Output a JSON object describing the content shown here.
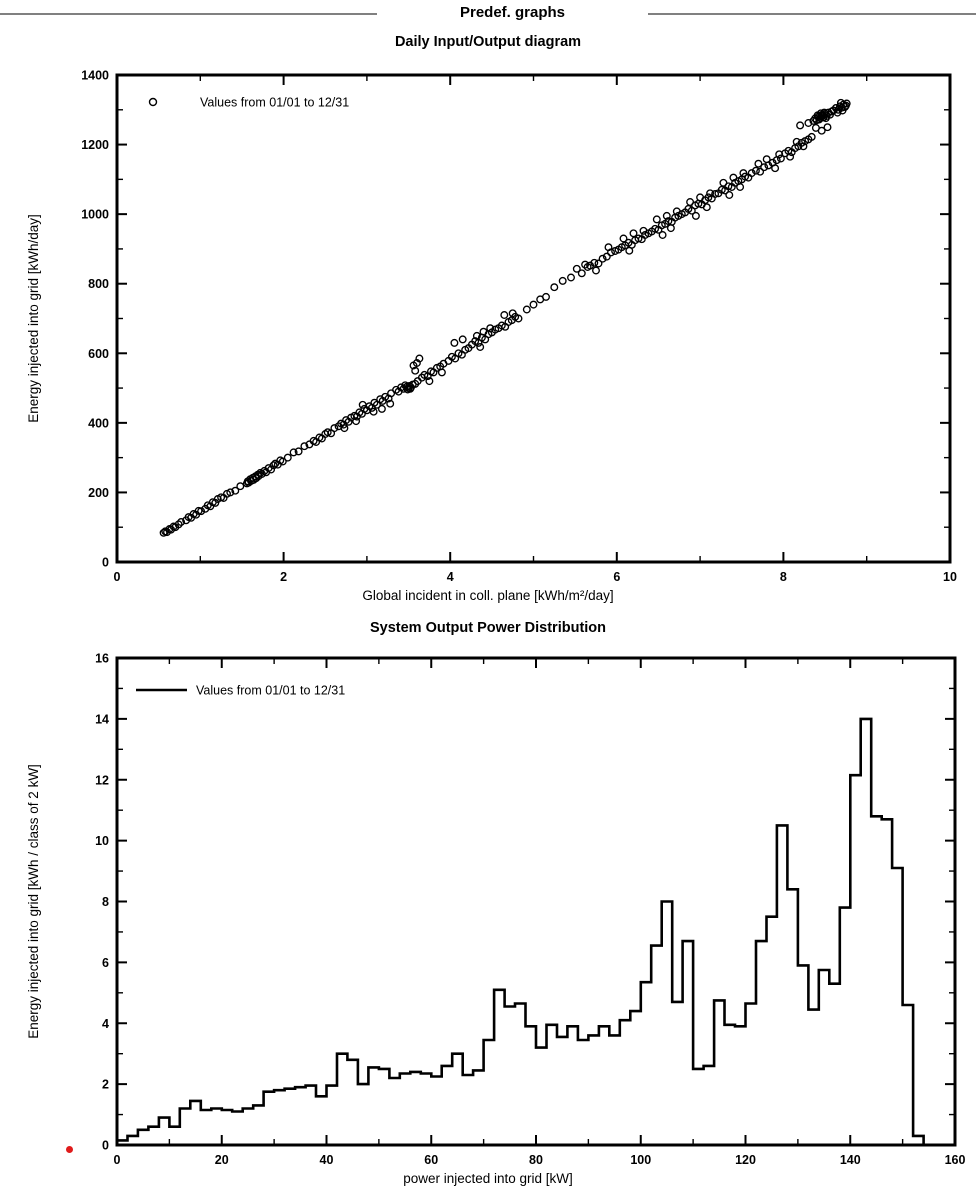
{
  "header": {
    "title": "Predef. graphs"
  },
  "colors": {
    "header_rule": "#808080",
    "red_dot": "#e01b1b",
    "plot": "#000000"
  },
  "chart_data": [
    {
      "type": "scatter",
      "title": "Daily Input/Output diagram",
      "legend": "Values from 01/01 to 12/31",
      "xlabel": "Global incident in coll. plane [kWh/m²/day]",
      "ylabel": "Energy injected into grid [kWh/day]",
      "xlim": [
        0,
        10
      ],
      "ylim": [
        0,
        1400
      ],
      "x_major": 2,
      "x_minor": 1,
      "y_major": 200,
      "y_minor": 100,
      "grid": false,
      "legend_position": "top-left",
      "points": [
        [
          0.56,
          84
        ],
        [
          0.58,
          88
        ],
        [
          0.6,
          86
        ],
        [
          0.63,
          95
        ],
        [
          0.65,
          93
        ],
        [
          0.68,
          102
        ],
        [
          0.7,
          100
        ],
        [
          0.74,
          108
        ],
        [
          0.77,
          115
        ],
        [
          0.83,
          120
        ],
        [
          0.86,
          129
        ],
        [
          0.89,
          127
        ],
        [
          0.92,
          138
        ],
        [
          0.95,
          136
        ],
        [
          0.98,
          147
        ],
        [
          1.01,
          146
        ],
        [
          1.06,
          153
        ],
        [
          1.09,
          163
        ],
        [
          1.12,
          160
        ],
        [
          1.15,
          172
        ],
        [
          1.18,
          170
        ],
        [
          1.21,
          181
        ],
        [
          1.25,
          186
        ],
        [
          1.28,
          184
        ],
        [
          1.32,
          196
        ],
        [
          1.36,
          200
        ],
        [
          1.42,
          205
        ],
        [
          1.48,
          218
        ],
        [
          1.56,
          226
        ],
        [
          1.57,
          232
        ],
        [
          1.58,
          228
        ],
        [
          1.6,
          238
        ],
        [
          1.61,
          233
        ],
        [
          1.63,
          242
        ],
        [
          1.64,
          236
        ],
        [
          1.66,
          246
        ],
        [
          1.67,
          241
        ],
        [
          1.69,
          251
        ],
        [
          1.7,
          247
        ],
        [
          1.72,
          256
        ],
        [
          1.74,
          253
        ],
        [
          1.77,
          262
        ],
        [
          1.79,
          258
        ],
        [
          1.82,
          270
        ],
        [
          1.85,
          266
        ],
        [
          1.88,
          278
        ],
        [
          1.9,
          283
        ],
        [
          1.93,
          280
        ],
        [
          1.96,
          292
        ],
        [
          1.99,
          289
        ],
        [
          2.05,
          300
        ],
        [
          2.12,
          315
        ],
        [
          2.18,
          318
        ],
        [
          2.25,
          333
        ],
        [
          2.31,
          338
        ],
        [
          2.36,
          348
        ],
        [
          2.39,
          345
        ],
        [
          2.43,
          358
        ],
        [
          2.46,
          355
        ],
        [
          2.5,
          368
        ],
        [
          2.53,
          373
        ],
        [
          2.57,
          370
        ],
        [
          2.61,
          385
        ],
        [
          2.66,
          390
        ],
        [
          2.69,
          398
        ],
        [
          2.72,
          395
        ],
        [
          2.75,
          408
        ],
        [
          2.78,
          403
        ],
        [
          2.81,
          415
        ],
        [
          2.85,
          420
        ],
        [
          2.88,
          418
        ],
        [
          2.91,
          430
        ],
        [
          2.94,
          426
        ],
        [
          2.97,
          440
        ],
        [
          3.0,
          436
        ],
        [
          2.73,
          385
        ],
        [
          2.87,
          405
        ],
        [
          2.95,
          452
        ],
        [
          3.03,
          448
        ],
        [
          3.06,
          443
        ],
        [
          3.09,
          458
        ],
        [
          3.12,
          452
        ],
        [
          3.16,
          468
        ],
        [
          3.19,
          463
        ],
        [
          3.22,
          475
        ],
        [
          3.26,
          470
        ],
        [
          3.29,
          485
        ],
        [
          3.08,
          432
        ],
        [
          3.18,
          440
        ],
        [
          3.28,
          455
        ],
        [
          3.35,
          495
        ],
        [
          3.38,
          490
        ],
        [
          3.41,
          502
        ],
        [
          3.44,
          498
        ],
        [
          3.46,
          508
        ],
        [
          3.48,
          504
        ],
        [
          3.49,
          496
        ],
        [
          3.5,
          500
        ],
        [
          3.51,
          506
        ],
        [
          3.52,
          498
        ],
        [
          3.53,
          502
        ],
        [
          3.55,
          510
        ],
        [
          3.58,
          512
        ],
        [
          3.61,
          520
        ],
        [
          3.56,
          565
        ],
        [
          3.6,
          572
        ],
        [
          3.63,
          585
        ],
        [
          3.58,
          550
        ],
        [
          3.66,
          530
        ],
        [
          3.69,
          538
        ],
        [
          3.73,
          534
        ],
        [
          3.77,
          548
        ],
        [
          3.8,
          545
        ],
        [
          3.84,
          558
        ],
        [
          3.88,
          562
        ],
        [
          3.92,
          570
        ],
        [
          3.75,
          520
        ],
        [
          3.9,
          545
        ],
        [
          3.98,
          578
        ],
        [
          4.02,
          590
        ],
        [
          4.06,
          585
        ],
        [
          4.1,
          600
        ],
        [
          4.14,
          596
        ],
        [
          4.18,
          610
        ],
        [
          4.22,
          615
        ],
        [
          4.05,
          630
        ],
        [
          4.15,
          640
        ],
        [
          4.26,
          625
        ],
        [
          4.3,
          635
        ],
        [
          4.34,
          630
        ],
        [
          4.38,
          645
        ],
        [
          4.42,
          640
        ],
        [
          4.46,
          655
        ],
        [
          4.5,
          660
        ],
        [
          4.54,
          668
        ],
        [
          4.32,
          650
        ],
        [
          4.4,
          662
        ],
        [
          4.48,
          672
        ],
        [
          4.36,
          618
        ],
        [
          4.58,
          672
        ],
        [
          4.62,
          680
        ],
        [
          4.66,
          676
        ],
        [
          4.7,
          690
        ],
        [
          4.74,
          695
        ],
        [
          4.78,
          705
        ],
        [
          4.82,
          700
        ],
        [
          4.65,
          710
        ],
        [
          4.75,
          715
        ],
        [
          4.92,
          726
        ],
        [
          5.0,
          740
        ],
        [
          5.08,
          755
        ],
        [
          5.15,
          762
        ],
        [
          5.25,
          790
        ],
        [
          5.35,
          808
        ],
        [
          5.45,
          818
        ],
        [
          5.52,
          843
        ],
        [
          5.58,
          830
        ],
        [
          5.62,
          855
        ],
        [
          5.65,
          848
        ],
        [
          5.68,
          852
        ],
        [
          5.73,
          860
        ],
        [
          5.78,
          858
        ],
        [
          5.83,
          872
        ],
        [
          5.88,
          878
        ],
        [
          5.93,
          890
        ],
        [
          5.98,
          894
        ],
        [
          5.75,
          838
        ],
        [
          5.9,
          905
        ],
        [
          6.02,
          898
        ],
        [
          6.06,
          905
        ],
        [
          6.1,
          910
        ],
        [
          6.14,
          918
        ],
        [
          6.18,
          912
        ],
        [
          6.22,
          925
        ],
        [
          6.26,
          930
        ],
        [
          6.3,
          928
        ],
        [
          6.34,
          940
        ],
        [
          6.38,
          945
        ],
        [
          6.08,
          930
        ],
        [
          6.2,
          945
        ],
        [
          6.32,
          952
        ],
        [
          6.15,
          895
        ],
        [
          6.42,
          950
        ],
        [
          6.46,
          958
        ],
        [
          6.5,
          955
        ],
        [
          6.54,
          968
        ],
        [
          6.58,
          972
        ],
        [
          6.62,
          980
        ],
        [
          6.66,
          978
        ],
        [
          6.7,
          990
        ],
        [
          6.74,
          995
        ],
        [
          6.78,
          1000
        ],
        [
          6.48,
          985
        ],
        [
          6.6,
          995
        ],
        [
          6.72,
          1008
        ],
        [
          6.55,
          940
        ],
        [
          6.65,
          960
        ],
        [
          6.82,
          1005
        ],
        [
          6.86,
          1015
        ],
        [
          6.9,
          1010
        ],
        [
          6.94,
          1025
        ],
        [
          6.98,
          1030
        ],
        [
          7.02,
          1028
        ],
        [
          7.06,
          1040
        ],
        [
          7.1,
          1048
        ],
        [
          7.14,
          1045
        ],
        [
          7.18,
          1058
        ],
        [
          6.88,
          1035
        ],
        [
          7.0,
          1048
        ],
        [
          7.12,
          1060
        ],
        [
          6.95,
          995
        ],
        [
          7.08,
          1020
        ],
        [
          7.22,
          1060
        ],
        [
          7.26,
          1070
        ],
        [
          7.3,
          1068
        ],
        [
          7.34,
          1080
        ],
        [
          7.38,
          1078
        ],
        [
          7.42,
          1090
        ],
        [
          7.46,
          1095
        ],
        [
          7.5,
          1100
        ],
        [
          7.54,
          1108
        ],
        [
          7.58,
          1105
        ],
        [
          7.28,
          1090
        ],
        [
          7.4,
          1105
        ],
        [
          7.52,
          1118
        ],
        [
          7.35,
          1055
        ],
        [
          7.48,
          1078
        ],
        [
          7.62,
          1118
        ],
        [
          7.67,
          1125
        ],
        [
          7.72,
          1122
        ],
        [
          7.77,
          1135
        ],
        [
          7.82,
          1140
        ],
        [
          7.87,
          1148
        ],
        [
          7.92,
          1155
        ],
        [
          7.97,
          1160
        ],
        [
          7.7,
          1145
        ],
        [
          7.8,
          1158
        ],
        [
          7.9,
          1132
        ],
        [
          7.95,
          1172
        ],
        [
          8.02,
          1175
        ],
        [
          8.06,
          1182
        ],
        [
          8.1,
          1178
        ],
        [
          8.14,
          1190
        ],
        [
          8.18,
          1195
        ],
        [
          8.22,
          1205
        ],
        [
          8.26,
          1210
        ],
        [
          8.3,
          1215
        ],
        [
          8.34,
          1222
        ],
        [
          8.08,
          1165
        ],
        [
          8.16,
          1208
        ],
        [
          8.24,
          1195
        ],
        [
          8.2,
          1255
        ],
        [
          8.3,
          1262
        ],
        [
          8.36,
          1268
        ],
        [
          8.38,
          1275
        ],
        [
          8.4,
          1270
        ],
        [
          8.42,
          1280
        ],
        [
          8.44,
          1276
        ],
        [
          8.46,
          1285
        ],
        [
          8.48,
          1278
        ],
        [
          8.5,
          1288
        ],
        [
          8.52,
          1282
        ],
        [
          8.54,
          1292
        ],
        [
          8.56,
          1286
        ],
        [
          8.58,
          1295
        ],
        [
          8.43,
          1272
        ],
        [
          8.47,
          1282
        ],
        [
          8.51,
          1276
        ],
        [
          8.45,
          1290
        ],
        [
          8.41,
          1284
        ],
        [
          8.49,
          1292
        ],
        [
          8.39,
          1248
        ],
        [
          8.46,
          1240
        ],
        [
          8.53,
          1250
        ],
        [
          8.6,
          1298
        ],
        [
          8.63,
          1305
        ],
        [
          8.66,
          1300
        ],
        [
          8.68,
          1310
        ],
        [
          8.7,
          1306
        ],
        [
          8.72,
          1315
        ],
        [
          8.74,
          1308
        ],
        [
          8.76,
          1318
        ],
        [
          8.65,
          1292
        ],
        [
          8.71,
          1298
        ],
        [
          8.75,
          1312
        ],
        [
          8.69,
          1320
        ]
      ]
    },
    {
      "type": "step-histogram",
      "title": "System Output Power Distribution",
      "legend": "Values from 01/01 to 12/31",
      "xlabel": "power injected into grid [kW]",
      "ylabel": "Energy injected into grid [kWh / class of 2 kW]",
      "xlim": [
        0,
        160
      ],
      "ylim": [
        0,
        16
      ],
      "x_major": 20,
      "x_minor": 10,
      "y_major": 2,
      "y_minor": 1,
      "grid": false,
      "legend_position": "top-left",
      "class_width": 2,
      "values": [
        0.15,
        0.3,
        0.5,
        0.6,
        0.9,
        0.6,
        1.2,
        1.45,
        1.15,
        1.2,
        1.15,
        1.1,
        1.2,
        1.3,
        1.75,
        1.8,
        1.85,
        1.9,
        1.95,
        1.6,
        1.95,
        3.0,
        2.8,
        2.0,
        2.55,
        2.5,
        2.2,
        2.35,
        2.4,
        2.35,
        2.25,
        2.6,
        3.0,
        2.3,
        2.45,
        3.45,
        5.1,
        4.55,
        4.65,
        3.9,
        3.2,
        3.95,
        3.55,
        3.9,
        3.45,
        3.6,
        3.9,
        3.6,
        4.1,
        4.4,
        5.35,
        6.55,
        8.0,
        4.7,
        6.7,
        2.5,
        2.6,
        4.75,
        3.95,
        3.9,
        4.65,
        6.7,
        7.5,
        10.5,
        8.4,
        5.9,
        4.45,
        5.75,
        5.3,
        7.8,
        12.15,
        14.0,
        10.8,
        10.7,
        9.1,
        4.6,
        0.3
      ]
    }
  ]
}
